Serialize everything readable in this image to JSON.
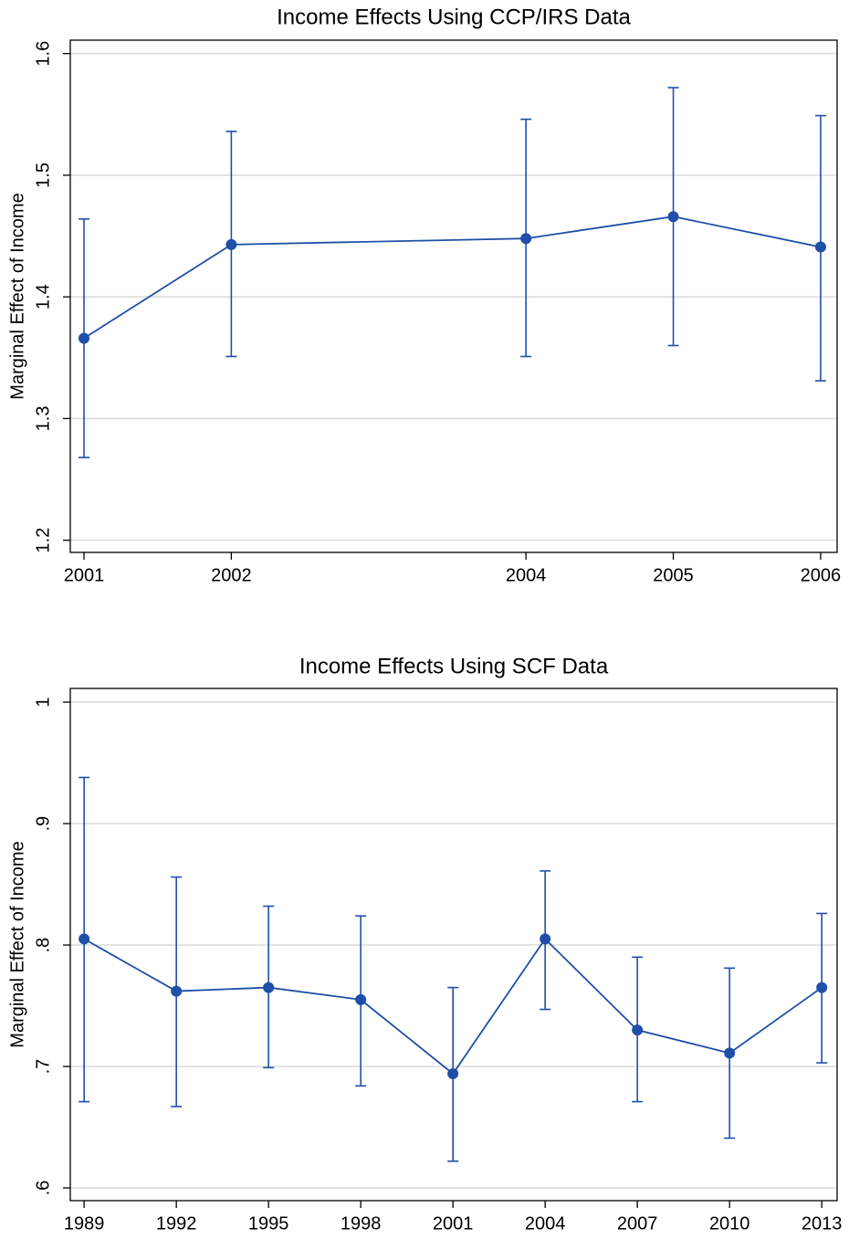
{
  "chart_data": [
    {
      "type": "line",
      "title": "Income Effects Using CCP/IRS Data",
      "y_label": "Marginal Effect of Income",
      "x": [
        2001,
        2002,
        2004,
        2005,
        2006
      ],
      "values": [
        1.366,
        1.443,
        1.448,
        1.466,
        1.441
      ],
      "lower": [
        1.268,
        1.351,
        1.351,
        1.36,
        1.331
      ],
      "upper": [
        1.464,
        1.536,
        1.546,
        1.572,
        1.549
      ],
      "color": "#1f4fa8",
      "xlim": [
        2000.907,
        2006.112
      ],
      "ylim": [
        1.19,
        1.611
      ],
      "xticks": [
        2001,
        2002,
        2004,
        2005,
        2006
      ],
      "yticks": [
        1.2,
        1.3,
        1.4,
        1.5,
        1.6
      ],
      "grid": true
    },
    {
      "type": "line",
      "title": "Income Effects Using SCF Data",
      "y_label": "Marginal Effect of Income",
      "x": [
        1989,
        1992,
        1995,
        1998,
        2001,
        2004,
        2007,
        2010,
        2013
      ],
      "values": [
        0.805,
        0.762,
        0.765,
        0.755,
        0.694,
        0.805,
        0.73,
        0.711,
        0.765
      ],
      "lower": [
        0.671,
        0.667,
        0.699,
        0.684,
        0.622,
        0.747,
        0.671,
        0.641,
        0.703
      ],
      "upper": [
        0.938,
        0.856,
        0.832,
        0.824,
        0.765,
        0.861,
        0.79,
        0.781,
        0.826
      ],
      "color": "#1f4fa8",
      "xlim": [
        1988.55,
        2013.5
      ],
      "ylim": [
        0.5895,
        1.0113
      ],
      "xticks": [
        1989,
        1992,
        1995,
        1998,
        2001,
        2004,
        2007,
        2010,
        2013
      ],
      "yticks": [
        {
          "value": 0.6,
          "label": ".6"
        },
        {
          "value": 0.7,
          "label": ".7"
        },
        {
          "value": 0.8,
          "label": ".8"
        },
        {
          "value": 0.9,
          "label": ".9"
        },
        1
      ],
      "grid": true
    }
  ]
}
